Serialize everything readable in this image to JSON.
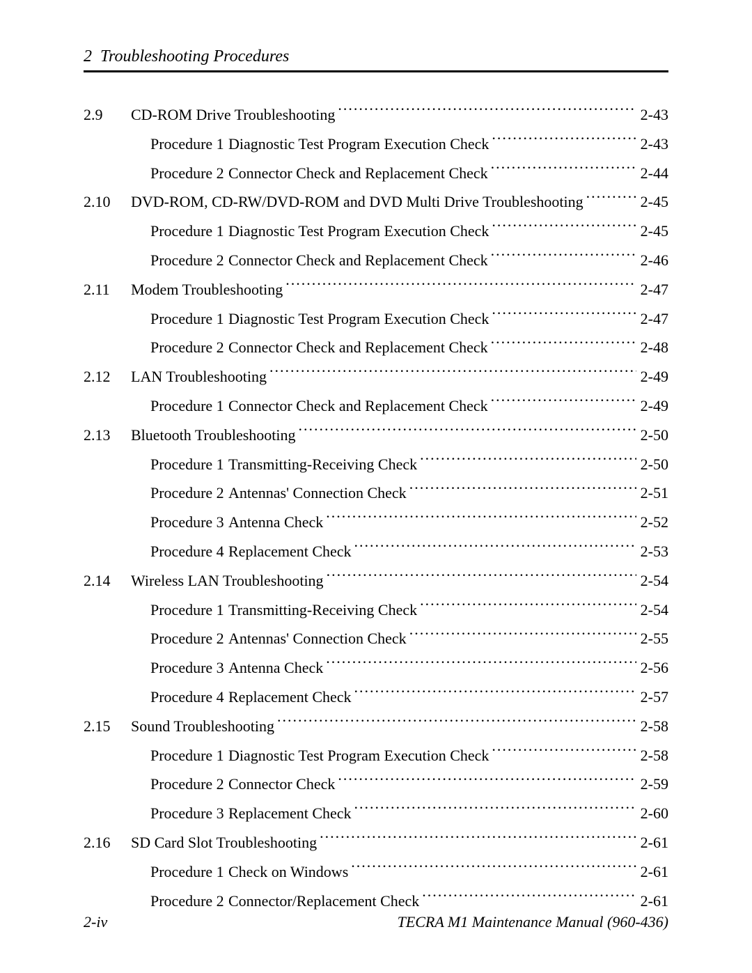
{
  "header": {
    "chapter_num": "2",
    "chapter_title": "Troubleshooting Procedures"
  },
  "footer": {
    "page_num": "2-iv",
    "manual_title": "TECRA M1 Maintenance Manual (960-436)"
  },
  "toc": [
    {
      "num": "2.9",
      "title": "CD-ROM Drive Troubleshooting",
      "page": "2-43",
      "subs": [
        {
          "proc": "Procedure 1",
          "title": "Diagnostic Test Program Execution Check",
          "page": "2-43"
        },
        {
          "proc": "Procedure 2",
          "title": "Connector Check and Replacement Check",
          "page": "2-44"
        }
      ]
    },
    {
      "num": "2.10",
      "title": "DVD-ROM, CD-RW/DVD-ROM and DVD Multi Drive Troubleshooting",
      "page": "2-45",
      "subs": [
        {
          "proc": "Procedure 1",
          "title": "Diagnostic Test Program Execution Check",
          "page": "2-45"
        },
        {
          "proc": "Procedure 2",
          "title": "Connector Check and Replacement Check",
          "page": "2-46"
        }
      ]
    },
    {
      "num": "2.11",
      "title": "Modem Troubleshooting",
      "page": "2-47",
      "subs": [
        {
          "proc": "Procedure 1",
          "title": "Diagnostic Test Program Execution Check",
          "page": "2-47"
        },
        {
          "proc": "Procedure 2",
          "title": "Connector Check and Replacement Check",
          "page": "2-48"
        }
      ]
    },
    {
      "num": "2.12",
      "title": "LAN Troubleshooting",
      "page": "2-49",
      "subs": [
        {
          "proc": "Procedure 1",
          "title": "Connector Check and Replacement Check",
          "page": "2-49"
        }
      ]
    },
    {
      "num": "2.13",
      "title": "Bluetooth Troubleshooting",
      "page": "2-50",
      "subs": [
        {
          "proc": "Procedure 1",
          "title": "Transmitting-Receiving Check",
          "page": "2-50"
        },
        {
          "proc": "Procedure 2",
          "title": "Antennas' Connection Check",
          "page": "2-51"
        },
        {
          "proc": "Procedure 3",
          "title": "Antenna Check",
          "page": "2-52"
        },
        {
          "proc": "Procedure 4",
          "title": "Replacement Check",
          "page": "2-53"
        }
      ]
    },
    {
      "num": "2.14",
      "title": "Wireless LAN Troubleshooting",
      "page": "2-54",
      "subs": [
        {
          "proc": "Procedure 1",
          "title": "Transmitting-Receiving Check",
          "page": "2-54"
        },
        {
          "proc": "Procedure 2",
          "title": "Antennas' Connection Check",
          "page": "2-55"
        },
        {
          "proc": "Procedure 3",
          "title": "Antenna Check",
          "page": "2-56"
        },
        {
          "proc": "Procedure 4",
          "title": "Replacement Check",
          "page": "2-57"
        }
      ]
    },
    {
      "num": "2.15",
      "title": "Sound Troubleshooting",
      "page": "2-58",
      "subs": [
        {
          "proc": "Procedure 1",
          "title": "Diagnostic Test Program Execution Check",
          "page": "2-58"
        },
        {
          "proc": "Procedure 2",
          "title": "Connector Check",
          "page": "2-59"
        },
        {
          "proc": "Procedure 3",
          "title": "Replacement Check",
          "page": "2-60"
        }
      ]
    },
    {
      "num": "2.16",
      "title": "SD Card Slot Troubleshooting",
      "page": "2-61",
      "subs": [
        {
          "proc": "Procedure 1",
          "title": "Check on Windows",
          "page": "2-61"
        },
        {
          "proc": "Procedure 2",
          "title": "Connector/Replacement Check",
          "page": "2-61"
        }
      ]
    }
  ]
}
